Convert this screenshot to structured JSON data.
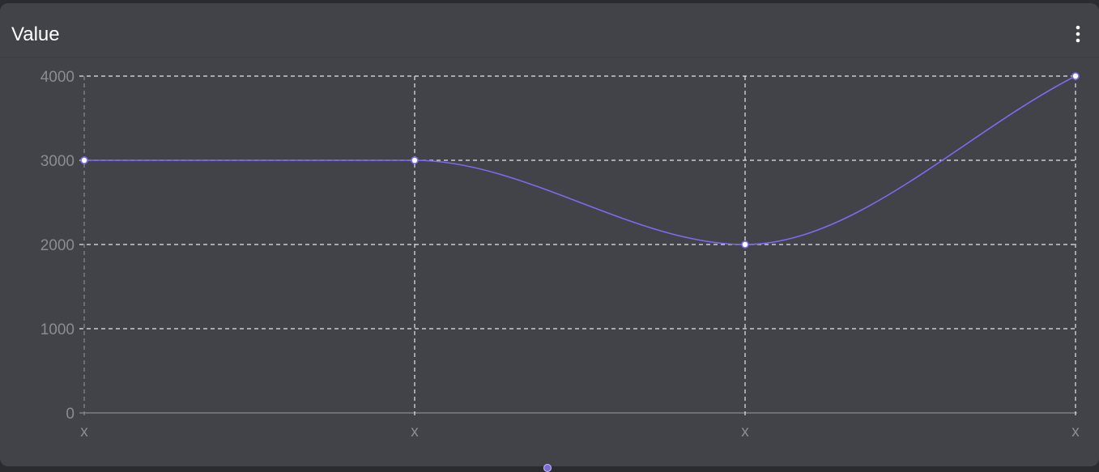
{
  "header": {
    "title": "Value",
    "menu_icon": "more-vertical-icon"
  },
  "colors": {
    "background": "#414348",
    "line": "#7b6bf0",
    "grid": "#e6e6e6",
    "axis_text": "#8a8c91",
    "point_fill": "#ffffff"
  },
  "chart_data": {
    "type": "line",
    "categories": [
      "x",
      "x",
      "x",
      "x"
    ],
    "values": [
      3000,
      3000,
      2000,
      4000
    ],
    "ylim": [
      0,
      4000
    ],
    "yticks": [
      0,
      1000,
      2000,
      3000,
      4000
    ],
    "curve": "smooth",
    "grid": true,
    "grid_style": "dashed"
  }
}
